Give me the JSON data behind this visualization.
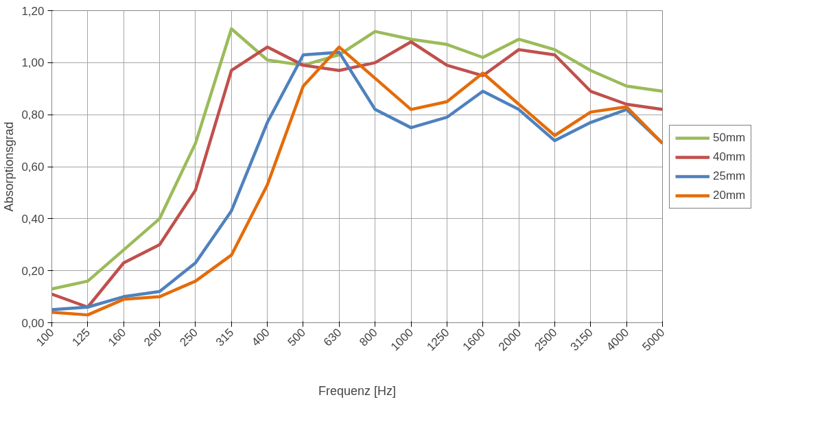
{
  "chart_data": {
    "type": "line",
    "xlabel": "Frequenz [Hz]",
    "ylabel": "Absorptionsgrad",
    "categories": [
      "100",
      "125",
      "160",
      "200",
      "250",
      "315",
      "400",
      "500",
      "630",
      "800",
      "1000",
      "1250",
      "1600",
      "2000",
      "2500",
      "3150",
      "4000",
      "5000"
    ],
    "series": [
      {
        "name": "50mm",
        "color": "#9bbb59",
        "values": [
          0.13,
          0.16,
          0.28,
          0.4,
          0.69,
          1.13,
          1.01,
          0.99,
          1.03,
          1.12,
          1.09,
          1.07,
          1.02,
          1.09,
          1.05,
          0.97,
          0.91,
          0.89
        ]
      },
      {
        "name": "40mm",
        "color": "#c0504d",
        "values": [
          0.11,
          0.06,
          0.23,
          0.3,
          0.51,
          0.97,
          1.06,
          0.99,
          0.97,
          1.0,
          1.08,
          0.99,
          0.95,
          1.05,
          1.03,
          0.89,
          0.84,
          0.82
        ]
      },
      {
        "name": "25mm",
        "color": "#4f81bd",
        "values": [
          0.05,
          0.06,
          0.1,
          0.12,
          0.23,
          0.43,
          0.77,
          1.03,
          1.04,
          0.82,
          0.75,
          0.79,
          0.89,
          0.82,
          0.7,
          0.77,
          0.82,
          0.69
        ]
      },
      {
        "name": "20mm",
        "color": "#e46c0a",
        "values": [
          0.04,
          0.03,
          0.09,
          0.1,
          0.16,
          0.26,
          0.53,
          0.91,
          1.06,
          0.94,
          0.82,
          0.85,
          0.96,
          0.84,
          0.72,
          0.81,
          0.83,
          0.69
        ]
      }
    ],
    "ylim": [
      0,
      1.2
    ],
    "yticks": [
      {
        "value": 0,
        "label": "0,00"
      },
      {
        "value": 0.2,
        "label": "0,20"
      },
      {
        "value": 0.4,
        "label": "0,40"
      },
      {
        "value": 0.6,
        "label": "0,60"
      },
      {
        "value": 0.8,
        "label": "0,80"
      },
      {
        "value": 1.0,
        "label": "1,00"
      },
      {
        "value": 1.2,
        "label": "1,20"
      }
    ],
    "grid": true,
    "legend": "right",
    "marker": "none",
    "line_style": "solid"
  }
}
